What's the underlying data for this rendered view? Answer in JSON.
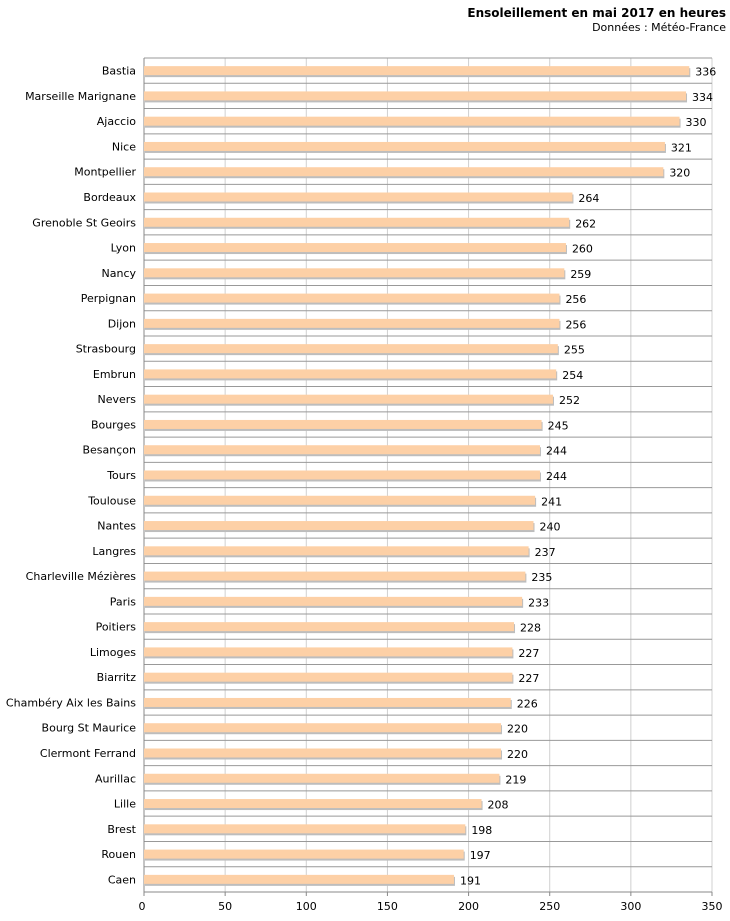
{
  "chart_data": {
    "type": "bar",
    "orientation": "horizontal",
    "title": "Ensoleillement en mai 2017 en heures",
    "subtitle": "Données : Météo-France",
    "xlabel": "",
    "ylabel": "",
    "xlim": [
      0,
      350
    ],
    "xticks": [
      0,
      50,
      100,
      150,
      200,
      250,
      300,
      350
    ],
    "grid": "vertical",
    "categories": [
      "Bastia",
      "Marseille Marignane",
      "Ajaccio",
      "Nice",
      "Montpellier",
      "Bordeaux",
      "Grenoble St Geoirs",
      "Lyon",
      "Nancy",
      "Perpignan",
      "Dijon",
      "Strasbourg",
      "Embrun",
      "Nevers",
      "Bourges",
      "Besançon",
      "Tours",
      "Toulouse",
      "Nantes",
      "Langres",
      "Charleville Mézières",
      "Paris",
      "Poitiers",
      "Limoges",
      "Biarritz",
      "Chambéry Aix les Bains",
      "Bourg St Maurice",
      "Clermont Ferrand",
      "Aurillac",
      "Lille",
      "Brest",
      "Rouen",
      "Caen"
    ],
    "values": [
      336,
      334,
      330,
      321,
      320,
      264,
      262,
      260,
      259,
      256,
      256,
      255,
      254,
      252,
      245,
      244,
      244,
      241,
      240,
      237,
      235,
      233,
      228,
      227,
      227,
      226,
      220,
      220,
      219,
      208,
      198,
      197,
      191
    ],
    "colors": {
      "bar": "#fdd0a6",
      "bar_shadow": "#bdbdbd",
      "grid": "#d0d0d0",
      "axis": "#888888",
      "separator": "#999999"
    }
  }
}
